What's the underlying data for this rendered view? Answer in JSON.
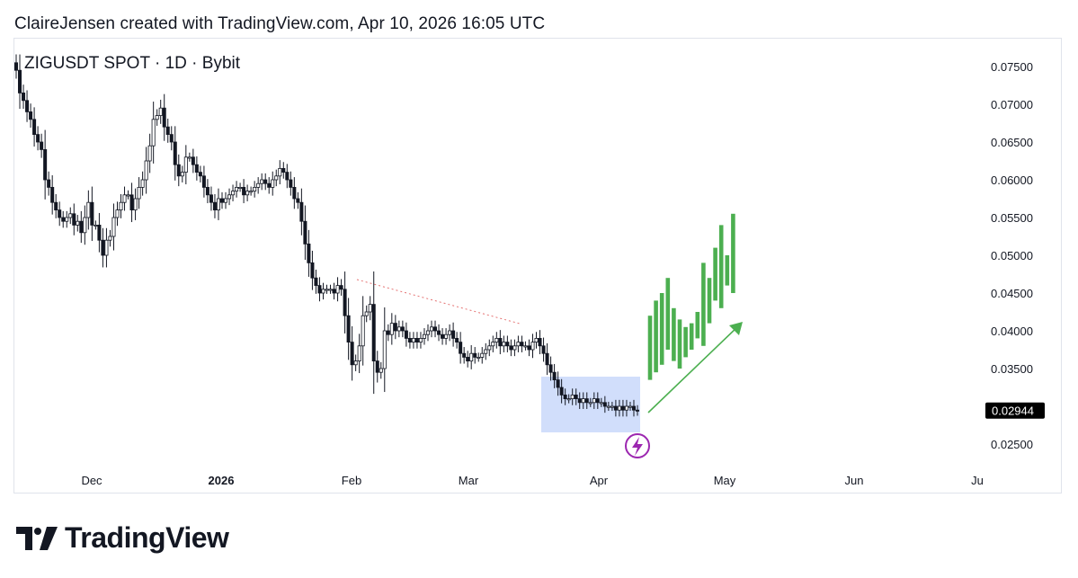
{
  "header": {
    "attribution": "ClaireJensen created with TradingView.com, Apr 10, 2026 16:05 UTC"
  },
  "symbol": {
    "label": "ZIGUSDT SPOT · 1D · Bybit"
  },
  "footer": {
    "brand": "TradingView"
  },
  "colors": {
    "candle": "#131722",
    "projection": "#4caf50",
    "zone": "#b3c8f8",
    "flash": "#9c27b0",
    "price_tag": "#000000"
  },
  "chart_data": {
    "type": "candlestick",
    "y_axis": {
      "ticks": [
        0.075,
        0.07,
        0.065,
        0.06,
        0.055,
        0.05,
        0.045,
        0.04,
        0.035,
        0.025
      ],
      "tick_labels": [
        "0.07500",
        "0.07000",
        "0.06500",
        "0.06000",
        "0.05500",
        "0.05000",
        "0.04500",
        "0.04000",
        "0.03500",
        "0.02500"
      ],
      "position": "right"
    },
    "x_axis": {
      "tick_labels": [
        "Dec",
        "2026",
        "Feb",
        "Mar",
        "Apr",
        "May",
        "Jun",
        "Ju"
      ]
    },
    "current_price": "0.02944",
    "closes": [
      0.0745,
      0.0715,
      0.0705,
      0.069,
      0.068,
      0.066,
      0.065,
      0.064,
      0.06,
      0.059,
      0.057,
      0.056,
      0.055,
      0.0545,
      0.055,
      0.0555,
      0.054,
      0.0545,
      0.053,
      0.055,
      0.057,
      0.054,
      0.054,
      0.052,
      0.05,
      0.052,
      0.0525,
      0.055,
      0.056,
      0.057,
      0.058,
      0.058,
      0.056,
      0.0575,
      0.059,
      0.06,
      0.0625,
      0.0645,
      0.068,
      0.0685,
      0.0695,
      0.067,
      0.066,
      0.065,
      0.062,
      0.0605,
      0.061,
      0.063,
      0.063,
      0.062,
      0.061,
      0.0605,
      0.059,
      0.058,
      0.057,
      0.056,
      0.0575,
      0.057,
      0.0575,
      0.058,
      0.0585,
      0.059,
      0.059,
      0.058,
      0.0585,
      0.0585,
      0.059,
      0.0595,
      0.06,
      0.0595,
      0.059,
      0.06,
      0.0605,
      0.0615,
      0.061,
      0.06,
      0.059,
      0.0575,
      0.057,
      0.0545,
      0.0515,
      0.049,
      0.047,
      0.046,
      0.045,
      0.0455,
      0.0455,
      0.0455,
      0.045,
      0.046,
      0.0455,
      0.042,
      0.0385,
      0.0355,
      0.036,
      0.038,
      0.042,
      0.0425,
      0.0435,
      0.036,
      0.0345,
      0.035,
      0.04,
      0.0395,
      0.041,
      0.04,
      0.0405,
      0.04,
      0.039,
      0.0385,
      0.039,
      0.0385,
      0.039,
      0.0395,
      0.04,
      0.0405,
      0.04,
      0.0395,
      0.039,
      0.0395,
      0.04,
      0.039,
      0.0385,
      0.037,
      0.0365,
      0.036,
      0.037,
      0.0365,
      0.0365,
      0.037,
      0.0375,
      0.038,
      0.0385,
      0.039,
      0.038,
      0.0385,
      0.038,
      0.0375,
      0.038,
      0.0385,
      0.038,
      0.038,
      0.0375,
      0.0385,
      0.039,
      0.038,
      0.037,
      0.0355,
      0.0345,
      0.0335,
      0.0325,
      0.0315,
      0.031,
      0.031,
      0.0315,
      0.031,
      0.0305,
      0.031,
      0.0305,
      0.0305,
      0.031,
      0.0305,
      0.0305,
      0.03,
      0.03,
      0.03,
      0.0295,
      0.03,
      0.0295,
      0.03,
      0.03,
      0.0295,
      0.0294
    ],
    "projection_bars": [
      [
        0.0335,
        0.042
      ],
      [
        0.0345,
        0.044
      ],
      [
        0.0355,
        0.045
      ],
      [
        0.0375,
        0.047
      ],
      [
        0.036,
        0.043
      ],
      [
        0.035,
        0.0415
      ],
      [
        0.0365,
        0.0405
      ],
      [
        0.0375,
        0.041
      ],
      [
        0.039,
        0.0425
      ],
      [
        0.038,
        0.049
      ],
      [
        0.041,
        0.047
      ],
      [
        0.044,
        0.051
      ],
      [
        0.043,
        0.054
      ],
      [
        0.046,
        0.05
      ],
      [
        0.045,
        0.0555
      ]
    ],
    "annotations": [
      "dotted down-sloping trendline",
      "blue accumulation zone",
      "green upward arrow",
      "purple flash icon"
    ]
  }
}
